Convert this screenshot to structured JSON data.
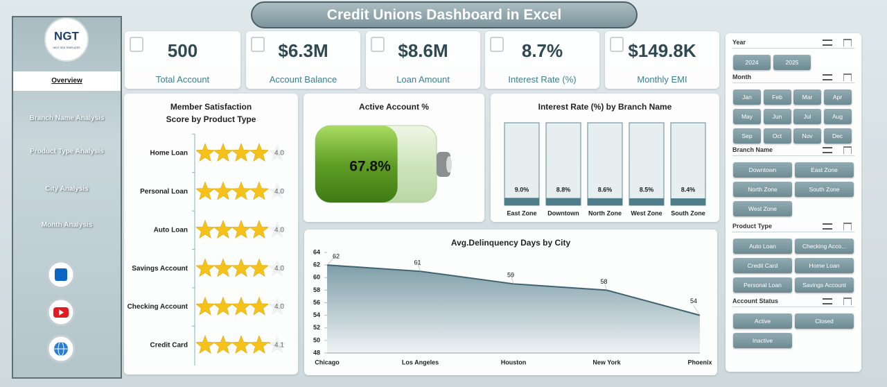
{
  "header": {
    "title": "Credit Unions Dashboard in Excel"
  },
  "logo": {
    "text": "NGT",
    "subtitle": "NEXT GEN TEMPLATES"
  },
  "nav": [
    "Overview",
    "Branch Name Analysis",
    "Product Type Analysis",
    "City Analysis",
    "Month Analysis"
  ],
  "kpis": [
    {
      "value": "500",
      "label": "Total Account"
    },
    {
      "value": "$6.3M",
      "label": "Account Balance"
    },
    {
      "value": "$8.6M",
      "label": "Loan Amount"
    },
    {
      "value": "8.7%",
      "label": "Interest Rate (%)"
    },
    {
      "value": "$149.8K",
      "label": "Monthly EMI"
    }
  ],
  "chart_data": [
    {
      "type": "rating",
      "title": "Member Satisfaction Score by Product Type",
      "categories": [
        "Home Loan",
        "Personal Loan",
        "Auto Loan",
        "Savings Account",
        "Checking Account",
        "Credit Card"
      ],
      "values": [
        4.0,
        4.0,
        4.0,
        4.0,
        4.0,
        4.1
      ],
      "value_labels": [
        "4.0",
        "4.0",
        "4.0",
        "4.0",
        "4.0",
        "4.1"
      ],
      "xlim": [
        0,
        5
      ],
      "color": "#f5c21b"
    },
    {
      "type": "battery",
      "title": "Active Account %",
      "values": [
        67.8
      ],
      "value_labels": [
        "67.8%"
      ],
      "ylim": [
        0,
        100
      ],
      "color": "#6aab2c"
    },
    {
      "type": "bar",
      "title": "Interest Rate (%) by Branch Name",
      "categories": [
        "East Zone",
        "Downtown",
        "North Zone",
        "West Zone",
        "South Zone"
      ],
      "values": [
        9.0,
        8.8,
        8.6,
        8.5,
        8.4
      ],
      "value_labels": [
        "9.0%",
        "8.8%",
        "8.6%",
        "8.5%",
        "8.4%"
      ],
      "ylim": [
        0,
        100
      ],
      "color": "#4f7d89"
    },
    {
      "type": "area",
      "title": "Avg.Delinquency Days by City",
      "categories": [
        "Chicago",
        "Los Angeles",
        "Houston",
        "New York",
        "Phoenix"
      ],
      "values": [
        62,
        61,
        59,
        58,
        54
      ],
      "ylim": [
        48,
        64
      ],
      "yticks": [
        48,
        50,
        52,
        54,
        56,
        58,
        60,
        62,
        64
      ],
      "color": "#3e6370"
    }
  ],
  "slicers": [
    {
      "title": "Year",
      "items": [
        "2024",
        "2025"
      ]
    },
    {
      "title": "Month",
      "items": [
        "Jan",
        "Feb",
        "Mar",
        "Apr",
        "May",
        "Jun",
        "Jul",
        "Aug",
        "Sep",
        "Oct",
        "Nov",
        "Dec"
      ]
    },
    {
      "title": "Branch Name",
      "items": [
        "Downtown",
        "East Zone",
        "North Zone",
        "South Zone",
        "West Zone"
      ]
    },
    {
      "title": "Product Type",
      "items": [
        "Auto Loan",
        "Checking Acco...",
        "Credit Card",
        "Home Loan",
        "Personal Loan",
        "Savings Account"
      ]
    },
    {
      "title": "Account Status",
      "items": [
        "Active",
        "Closed",
        "Inactive"
      ]
    }
  ]
}
